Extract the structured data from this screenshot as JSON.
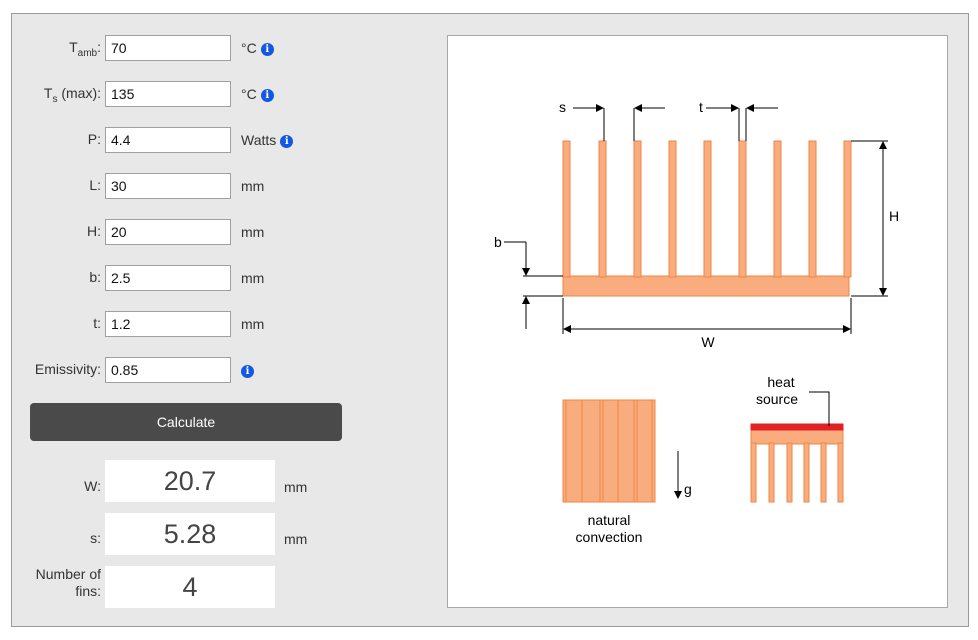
{
  "inputs": [
    {
      "id": "tamb",
      "label_main": "T",
      "label_sub": "amb",
      "label_tail": ":",
      "value": "70",
      "unit": "°C",
      "info": true
    },
    {
      "id": "ts",
      "label_main": "T",
      "label_sub": "s",
      "label_tail": " (max):",
      "value": "135",
      "unit": "°C",
      "info": true
    },
    {
      "id": "p",
      "label_main": "P:",
      "label_sub": "",
      "label_tail": "",
      "value": "4.4",
      "unit": "Watts",
      "info": true
    },
    {
      "id": "l",
      "label_main": "L:",
      "label_sub": "",
      "label_tail": "",
      "value": "30",
      "unit": "mm",
      "info": false
    },
    {
      "id": "h",
      "label_main": "H:",
      "label_sub": "",
      "label_tail": "",
      "value": "20",
      "unit": "mm",
      "info": false
    },
    {
      "id": "b",
      "label_main": "b:",
      "label_sub": "",
      "label_tail": "",
      "value": "2.5",
      "unit": "mm",
      "info": false
    },
    {
      "id": "t",
      "label_main": "t:",
      "label_sub": "",
      "label_tail": "",
      "value": "1.2",
      "unit": "mm",
      "info": false
    },
    {
      "id": "emissivity",
      "label_main": "Emissivity:",
      "label_sub": "",
      "label_tail": "",
      "value": "0.85",
      "unit": "",
      "info": true
    }
  ],
  "calculate_label": "Calculate",
  "results": [
    {
      "label": "W:",
      "value": "20.7",
      "unit": "mm"
    },
    {
      "label": "s:",
      "value": "5.28",
      "unit": "mm"
    },
    {
      "label": "Number of fins:",
      "value": "4",
      "unit": ""
    }
  ],
  "diagram": {
    "label_s": "s",
    "label_t": "t",
    "label_H": "H",
    "label_b": "b",
    "label_W": "W",
    "label_g": "g",
    "label_natural": "natural",
    "label_convection": "convection",
    "label_heat": "heat",
    "label_source": "source",
    "fin_color": "#f9ad7f",
    "fin_stroke": "#ef8543",
    "source_color": "#e02222"
  },
  "info_glyph": "i"
}
